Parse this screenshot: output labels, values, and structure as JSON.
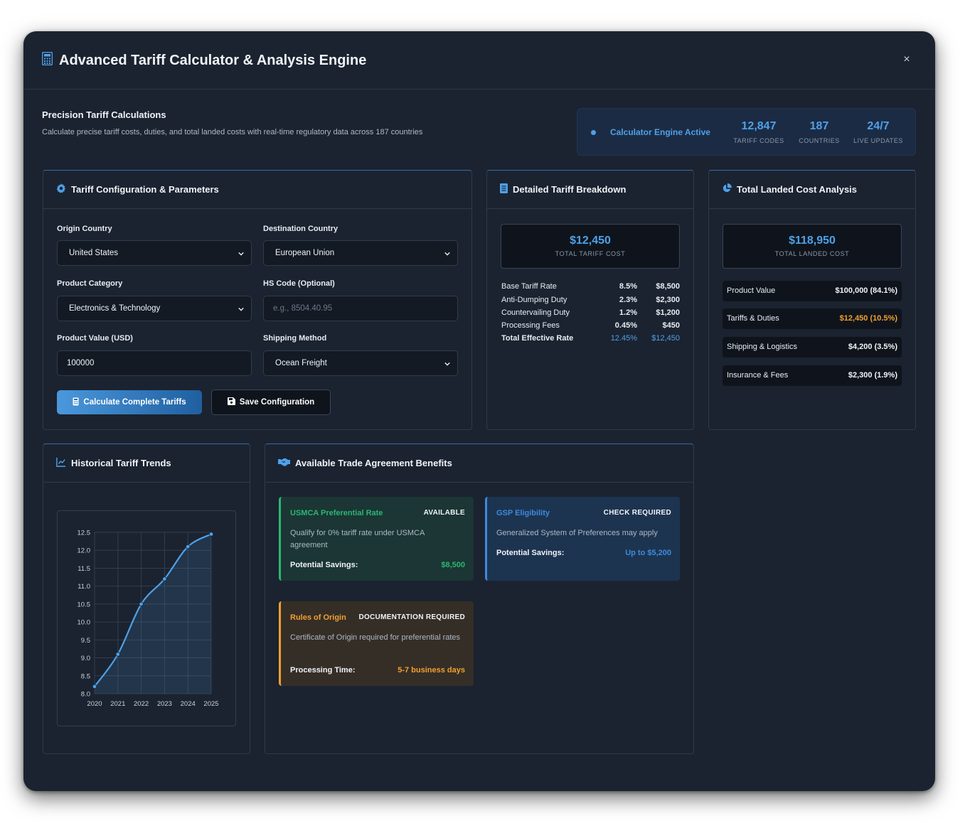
{
  "modal": {
    "title": "Advanced Tariff Calculator & Analysis Engine",
    "close": "×"
  },
  "intro": {
    "title": "Precision Tariff Calculations",
    "description": "Calculate precise tariff costs, duties, and total landed costs with real-time regulatory data across 187 countries"
  },
  "status": {
    "label": "Calculator Engine Active",
    "stats": [
      {
        "value": "12,847",
        "label": "TARIFF CODES"
      },
      {
        "value": "187",
        "label": "COUNTRIES"
      },
      {
        "value": "24/7",
        "label": "LIVE UPDATES"
      }
    ]
  },
  "config": {
    "title": "Tariff Configuration & Parameters",
    "origin_label": "Origin Country",
    "origin_value": "United States",
    "destination_label": "Destination Country",
    "destination_value": "European Union",
    "category_label": "Product Category",
    "category_value": "Electronics & Technology",
    "hs_label": "HS Code (Optional)",
    "hs_placeholder": "e.g., 8504.40.95",
    "value_label": "Product Value (USD)",
    "value_value": "100000",
    "shipping_label": "Shipping Method",
    "shipping_value": "Ocean Freight",
    "calculate_button": "Calculate Complete Tariffs",
    "save_button": "Save Configuration"
  },
  "breakdown": {
    "title": "Detailed Tariff Breakdown",
    "total_value": "$12,450",
    "total_label": "TOTAL TARIFF COST",
    "rows": [
      {
        "name": "Base Tariff Rate",
        "rate": "8.5%",
        "amount": "$8,500"
      },
      {
        "name": "Anti-Dumping Duty",
        "rate": "2.3%",
        "amount": "$2,300"
      },
      {
        "name": "Countervailing Duty",
        "rate": "1.2%",
        "amount": "$1,200"
      },
      {
        "name": "Processing Fees",
        "rate": "0.45%",
        "amount": "$450"
      },
      {
        "name": "Total Effective Rate",
        "rate": "12.45%",
        "amount": "$12,450"
      }
    ]
  },
  "landed": {
    "title": "Total Landed Cost Analysis",
    "total_value": "$118,950",
    "total_label": "TOTAL LANDED COST",
    "rows": [
      {
        "name": "Product Value",
        "value": "$100,000 (84.1%)"
      },
      {
        "name": "Tariffs & Duties",
        "value": "$12,450 (10.5%)"
      },
      {
        "name": "Shipping & Logistics",
        "value": "$4,200 (3.5%)"
      },
      {
        "name": "Insurance & Fees",
        "value": "$2,300 (1.9%)"
      }
    ]
  },
  "trends": {
    "title": "Historical Tariff Trends"
  },
  "chart_data": {
    "type": "line",
    "x": [
      "2020",
      "2021",
      "2022",
      "2023",
      "2024",
      "2025"
    ],
    "series": [
      {
        "values": [
          8.2,
          9.1,
          10.5,
          11.2,
          12.1,
          12.45
        ]
      }
    ],
    "ylim": [
      8.0,
      12.5
    ],
    "yticks": [
      "12.5",
      "12.0",
      "11.5",
      "11.0",
      "10.5",
      "10.0",
      "9.5",
      "9.0",
      "8.5",
      "8.0"
    ],
    "grid": true,
    "fill": true,
    "color": "#4ea1e8"
  },
  "agreements": {
    "title": "Available Trade Agreement Benefits",
    "items": [
      {
        "title": "USMCA Preferential Rate",
        "badge": "AVAILABLE",
        "description": "Qualify for 0% tariff rate under USMCA agreement",
        "key": "Potential Savings:",
        "value": "$8,500",
        "color": "#2bb673"
      },
      {
        "title": "GSP Eligibility",
        "badge": "CHECK REQUIRED",
        "description": "Generalized System of Preferences may apply",
        "key": "Potential Savings:",
        "value": "Up to $5,200",
        "color": "#3b8be0"
      },
      {
        "title": "Rules of Origin",
        "badge": "DOCUMENTATION REQUIRED",
        "description": "Certificate of Origin required for preferential rates",
        "key": "Processing Time:",
        "value": "5-7 business days",
        "color": "#f0a030"
      }
    ]
  }
}
